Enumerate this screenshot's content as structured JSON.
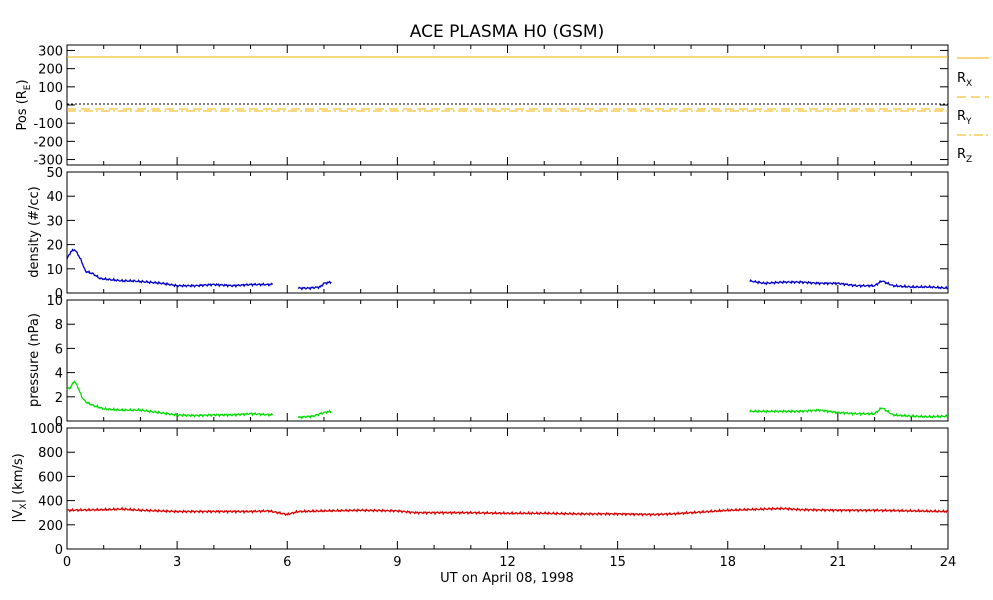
{
  "title": "ACE PLASMA H0 (GSM)",
  "xaxis": {
    "label": "UT on April 08, 1998",
    "range": [
      0,
      24
    ],
    "ticks": [
      "0",
      "3",
      "6",
      "9",
      "12",
      "15",
      "18",
      "21",
      "24"
    ]
  },
  "chart_data": [
    {
      "type": "line",
      "ylabel": "Pos (R",
      "ylabel_sub": "E",
      "ylim": [
        -330,
        330
      ],
      "yticks": [
        "300",
        "200",
        "100",
        "0",
        "-100",
        "-200",
        "-300"
      ],
      "zero_line": true,
      "color": "#f0b000",
      "series": [
        {
          "name": "R",
          "sub": "X",
          "style": "solid",
          "x": [
            0,
            24
          ],
          "y": [
            242,
            242
          ]
        },
        {
          "name": "R",
          "sub": "Y",
          "style": "dashed",
          "x": [
            0,
            24
          ],
          "y": [
            -27,
            -27
          ]
        },
        {
          "name": "R",
          "sub": "Z",
          "style": "dashdot",
          "x": [
            0,
            24
          ],
          "y": [
            -17,
            -17
          ]
        }
      ]
    },
    {
      "type": "line",
      "ylabel": "density (#/cc)",
      "ylim": [
        0,
        50
      ],
      "yticks": [
        "50",
        "40",
        "30",
        "20",
        "10",
        "0"
      ],
      "color": "#0000c8",
      "series": [
        {
          "segments": [
            {
              "x": [
                0,
                0.1,
                0.2,
                0.3,
                0.4,
                0.5,
                0.7,
                0.9,
                1.2,
                1.5,
                1.8,
                2.2,
                2.6,
                3.0,
                3.5,
                4.0,
                4.5,
                5.0,
                5.6
              ],
              "y": [
                14,
                17,
                18,
                16,
                13,
                9,
                8,
                6,
                5.5,
                5,
                5,
                4.5,
                4,
                3,
                3,
                3.5,
                3,
                3.5,
                3.5
              ]
            },
            {
              "x": [
                6.3,
                6.6,
                6.9,
                7.0,
                7.2
              ],
              "y": [
                2,
                2,
                2.5,
                4,
                4.5
              ]
            },
            {
              "x": [
                18.6,
                19.0,
                19.5,
                20.0,
                20.5,
                21.0,
                21.5,
                22.0,
                22.2,
                22.5,
                23.0,
                23.5,
                24.0
              ],
              "y": [
                5,
                4,
                4.5,
                4.5,
                4,
                4,
                3,
                3,
                5,
                3,
                2.5,
                2.5,
                2
              ]
            }
          ]
        }
      ]
    },
    {
      "type": "line",
      "ylabel": "pressure (nPa)",
      "ylim": [
        0,
        10
      ],
      "yticks": [
        "10",
        "8",
        "6",
        "4",
        "2",
        "0"
      ],
      "color": "#00dd00",
      "series": [
        {
          "segments": [
            {
              "x": [
                0,
                0.1,
                0.2,
                0.3,
                0.4,
                0.5,
                0.7,
                1.0,
                1.5,
                2.0,
                2.5,
                3.0,
                3.5,
                4.0,
                4.5,
                5.0,
                5.6
              ],
              "y": [
                2.6,
                2.8,
                3.3,
                2.8,
                2.0,
                1.6,
                1.3,
                1.0,
                0.9,
                0.9,
                0.7,
                0.5,
                0.45,
                0.5,
                0.5,
                0.6,
                0.5
              ]
            },
            {
              "x": [
                6.3,
                6.7,
                7.0,
                7.2
              ],
              "y": [
                0.3,
                0.4,
                0.7,
                0.8
              ]
            },
            {
              "x": [
                18.6,
                19.0,
                19.5,
                20.0,
                20.5,
                21.0,
                21.5,
                22.0,
                22.2,
                22.5,
                23.0,
                23.5,
                24.0
              ],
              "y": [
                0.8,
                0.8,
                0.8,
                0.8,
                0.9,
                0.7,
                0.6,
                0.6,
                1.1,
                0.5,
                0.4,
                0.35,
                0.4
              ]
            }
          ]
        }
      ]
    },
    {
      "type": "line",
      "ylabel": "|V",
      "ylabel_sub": "X",
      "ylabel_tail": "| (km/s)",
      "ylim": [
        0,
        1000
      ],
      "yticks": [
        "1000",
        "800",
        "600",
        "400",
        "200",
        "0"
      ],
      "color": "#dd0000",
      "series": [
        {
          "segments": [
            {
              "x": [
                0,
                1,
                1.5,
                2,
                3,
                4,
                5,
                5.5,
                6.0,
                6.3,
                7,
                8,
                9,
                9.5,
                10,
                11,
                12,
                13,
                14,
                15,
                16,
                16.5,
                17,
                18,
                19,
                19.5,
                20,
                21,
                22,
                23,
                24
              ],
              "y": [
                320,
                325,
                330,
                320,
                310,
                310,
                310,
                315,
                285,
                310,
                315,
                320,
                315,
                300,
                300,
                300,
                295,
                295,
                290,
                290,
                285,
                290,
                300,
                320,
                330,
                335,
                325,
                320,
                320,
                315,
                310
              ]
            }
          ]
        }
      ]
    }
  ]
}
